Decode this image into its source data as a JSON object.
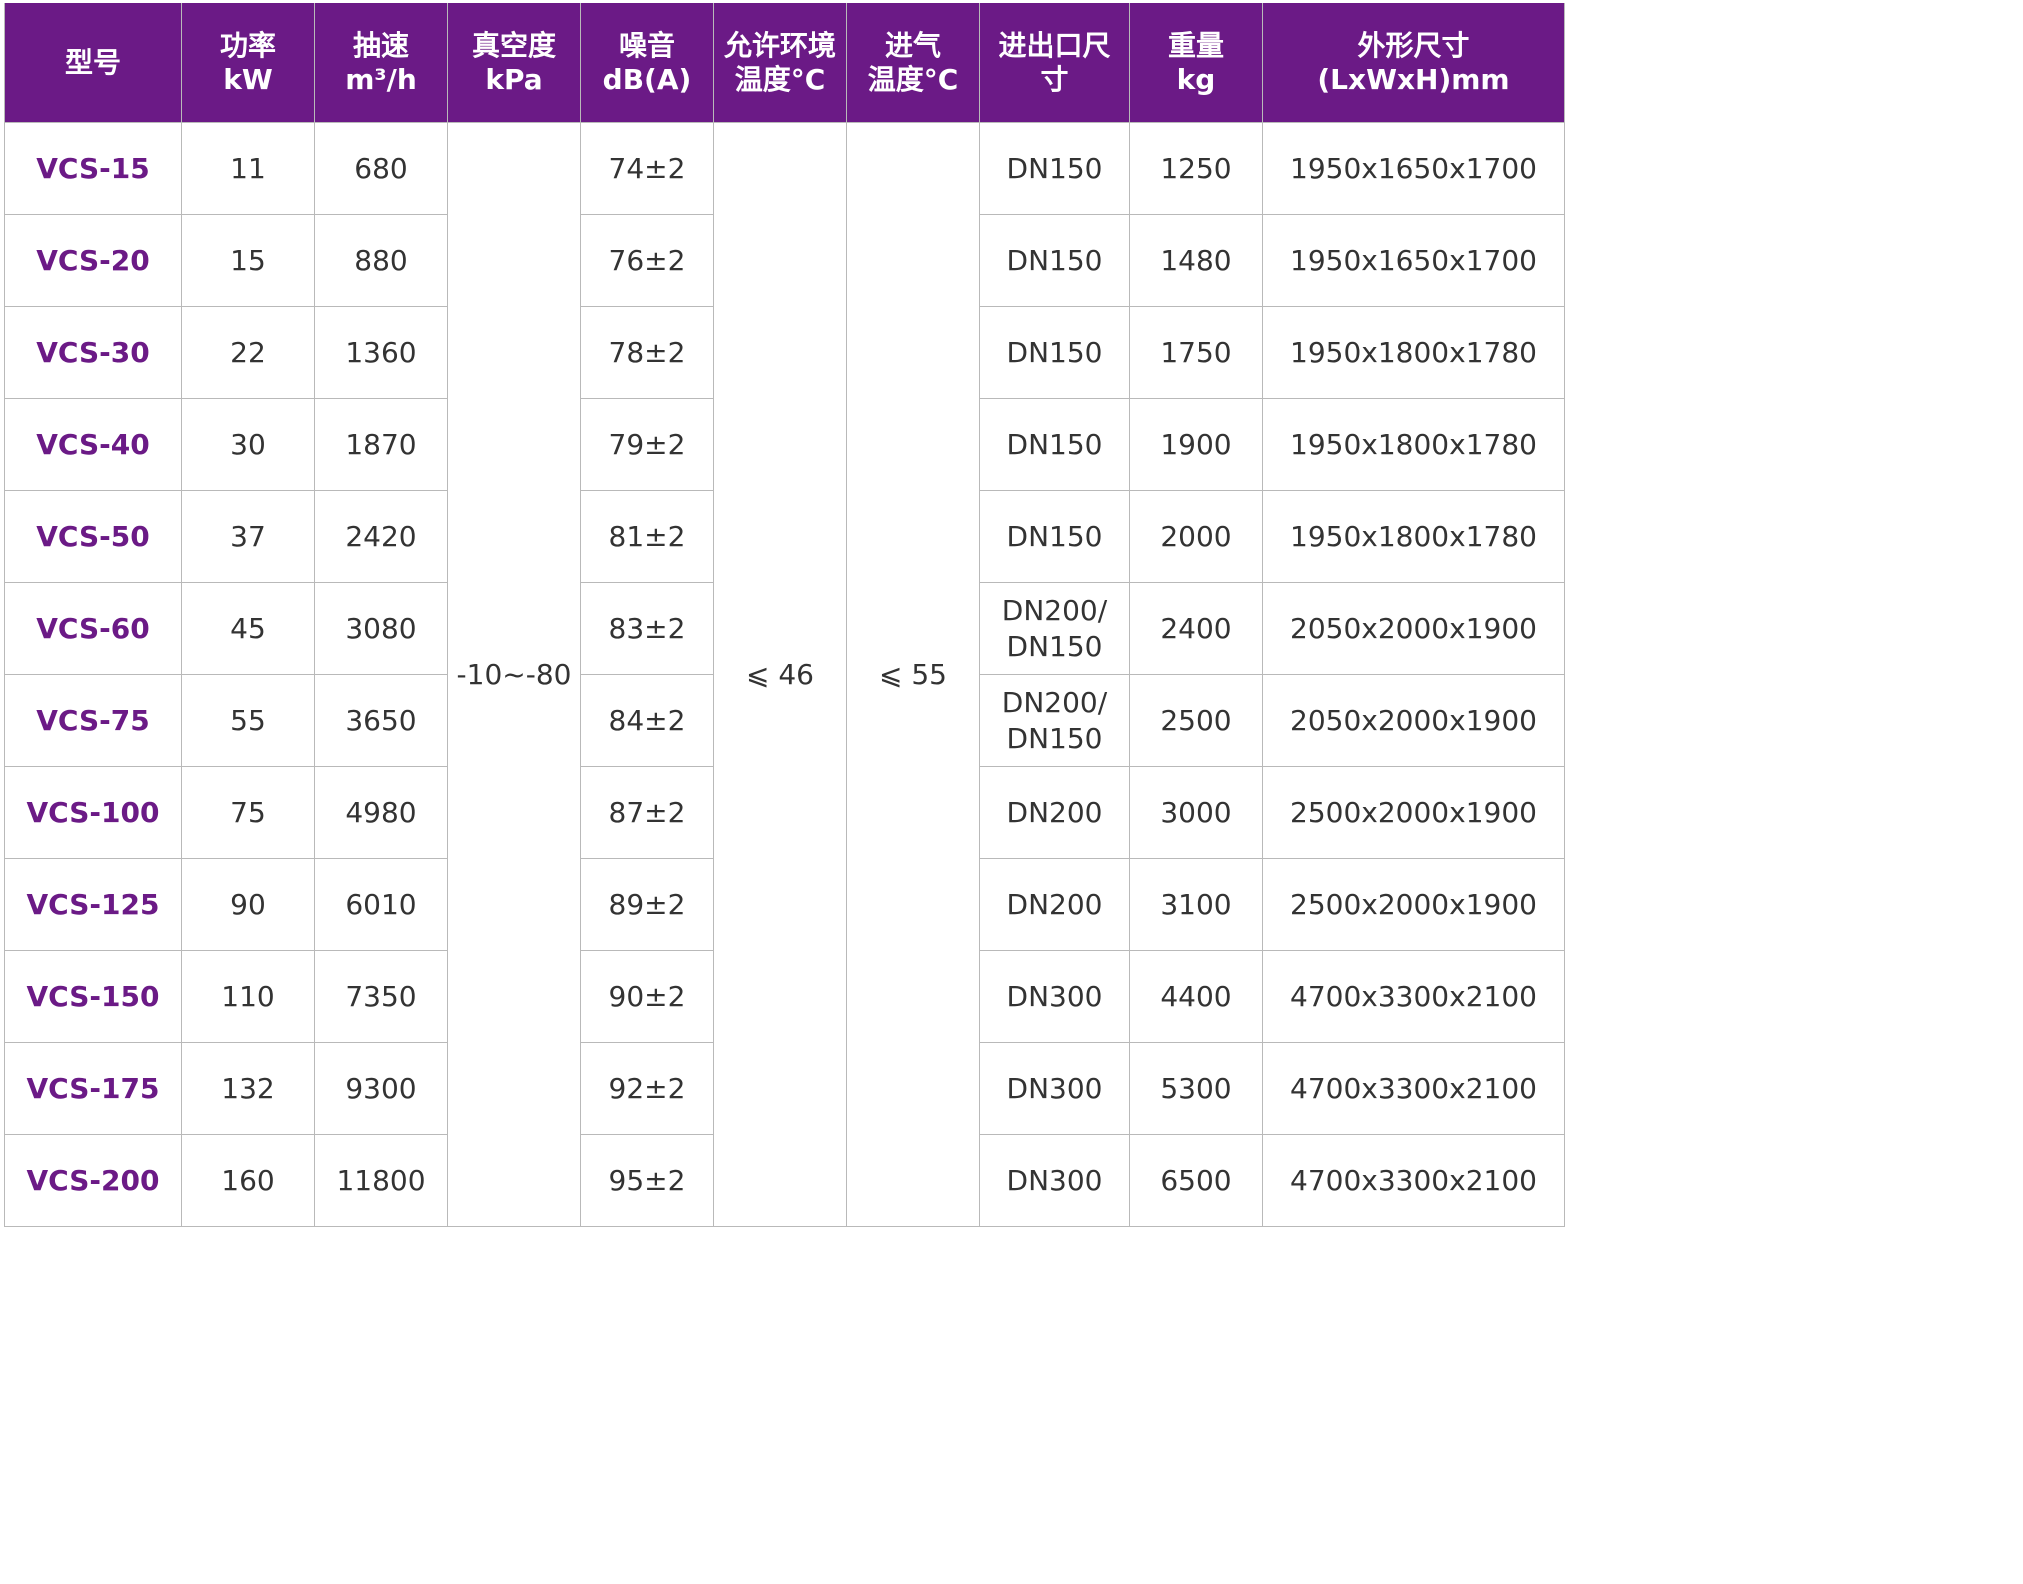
{
  "colors": {
    "header_bg": "#6b1a86",
    "header_text": "#ffffff",
    "model_text": "#6b1a86",
    "cell_text": "#333333",
    "grid": "#b9b9b9"
  },
  "headers": [
    "型号",
    "功率\nkW",
    "抽速\nm³/h",
    "真空度\nkPa",
    "噪音\ndB(A)",
    "允许环境\n温度°C",
    "进气\n温度°C",
    "进出口尺\n寸",
    "重量\nkg",
    "外形尺寸\n(LxWxH)mm"
  ],
  "shared": {
    "vacuum": "-10~-80",
    "ambient_temp": "⩽ 46",
    "inlet_temp": "⩽ 55"
  },
  "rows": [
    {
      "model": "VCS-15",
      "power": "11",
      "speed": "680",
      "noise": "74±2",
      "port": "DN150",
      "weight": "1250",
      "dims": "1950x1650x1700"
    },
    {
      "model": "VCS-20",
      "power": "15",
      "speed": "880",
      "noise": "76±2",
      "port": "DN150",
      "weight": "1480",
      "dims": "1950x1650x1700"
    },
    {
      "model": "VCS-30",
      "power": "22",
      "speed": "1360",
      "noise": "78±2",
      "port": "DN150",
      "weight": "1750",
      "dims": "1950x1800x1780"
    },
    {
      "model": "VCS-40",
      "power": "30",
      "speed": "1870",
      "noise": "79±2",
      "port": "DN150",
      "weight": "1900",
      "dims": "1950x1800x1780"
    },
    {
      "model": "VCS-50",
      "power": "37",
      "speed": "2420",
      "noise": "81±2",
      "port": "DN150",
      "weight": "2000",
      "dims": "1950x1800x1780"
    },
    {
      "model": "VCS-60",
      "power": "45",
      "speed": "3080",
      "noise": "83±2",
      "port": "DN200/\nDN150",
      "weight": "2400",
      "dims": "2050x2000x1900"
    },
    {
      "model": "VCS-75",
      "power": "55",
      "speed": "3650",
      "noise": "84±2",
      "port": "DN200/\nDN150",
      "weight": "2500",
      "dims": "2050x2000x1900"
    },
    {
      "model": "VCS-100",
      "power": "75",
      "speed": "4980",
      "noise": "87±2",
      "port": "DN200",
      "weight": "3000",
      "dims": "2500x2000x1900"
    },
    {
      "model": "VCS-125",
      "power": "90",
      "speed": "6010",
      "noise": "89±2",
      "port": "DN200",
      "weight": "3100",
      "dims": "2500x2000x1900"
    },
    {
      "model": "VCS-150",
      "power": "110",
      "speed": "7350",
      "noise": "90±2",
      "port": "DN300",
      "weight": "4400",
      "dims": "4700x3300x2100"
    },
    {
      "model": "VCS-175",
      "power": "132",
      "speed": "9300",
      "noise": "92±2",
      "port": "DN300",
      "weight": "5300",
      "dims": "4700x3300x2100"
    },
    {
      "model": "VCS-200",
      "power": "160",
      "speed": "11800",
      "noise": "95±2",
      "port": "DN300",
      "weight": "6500",
      "dims": "4700x3300x2100"
    }
  ]
}
